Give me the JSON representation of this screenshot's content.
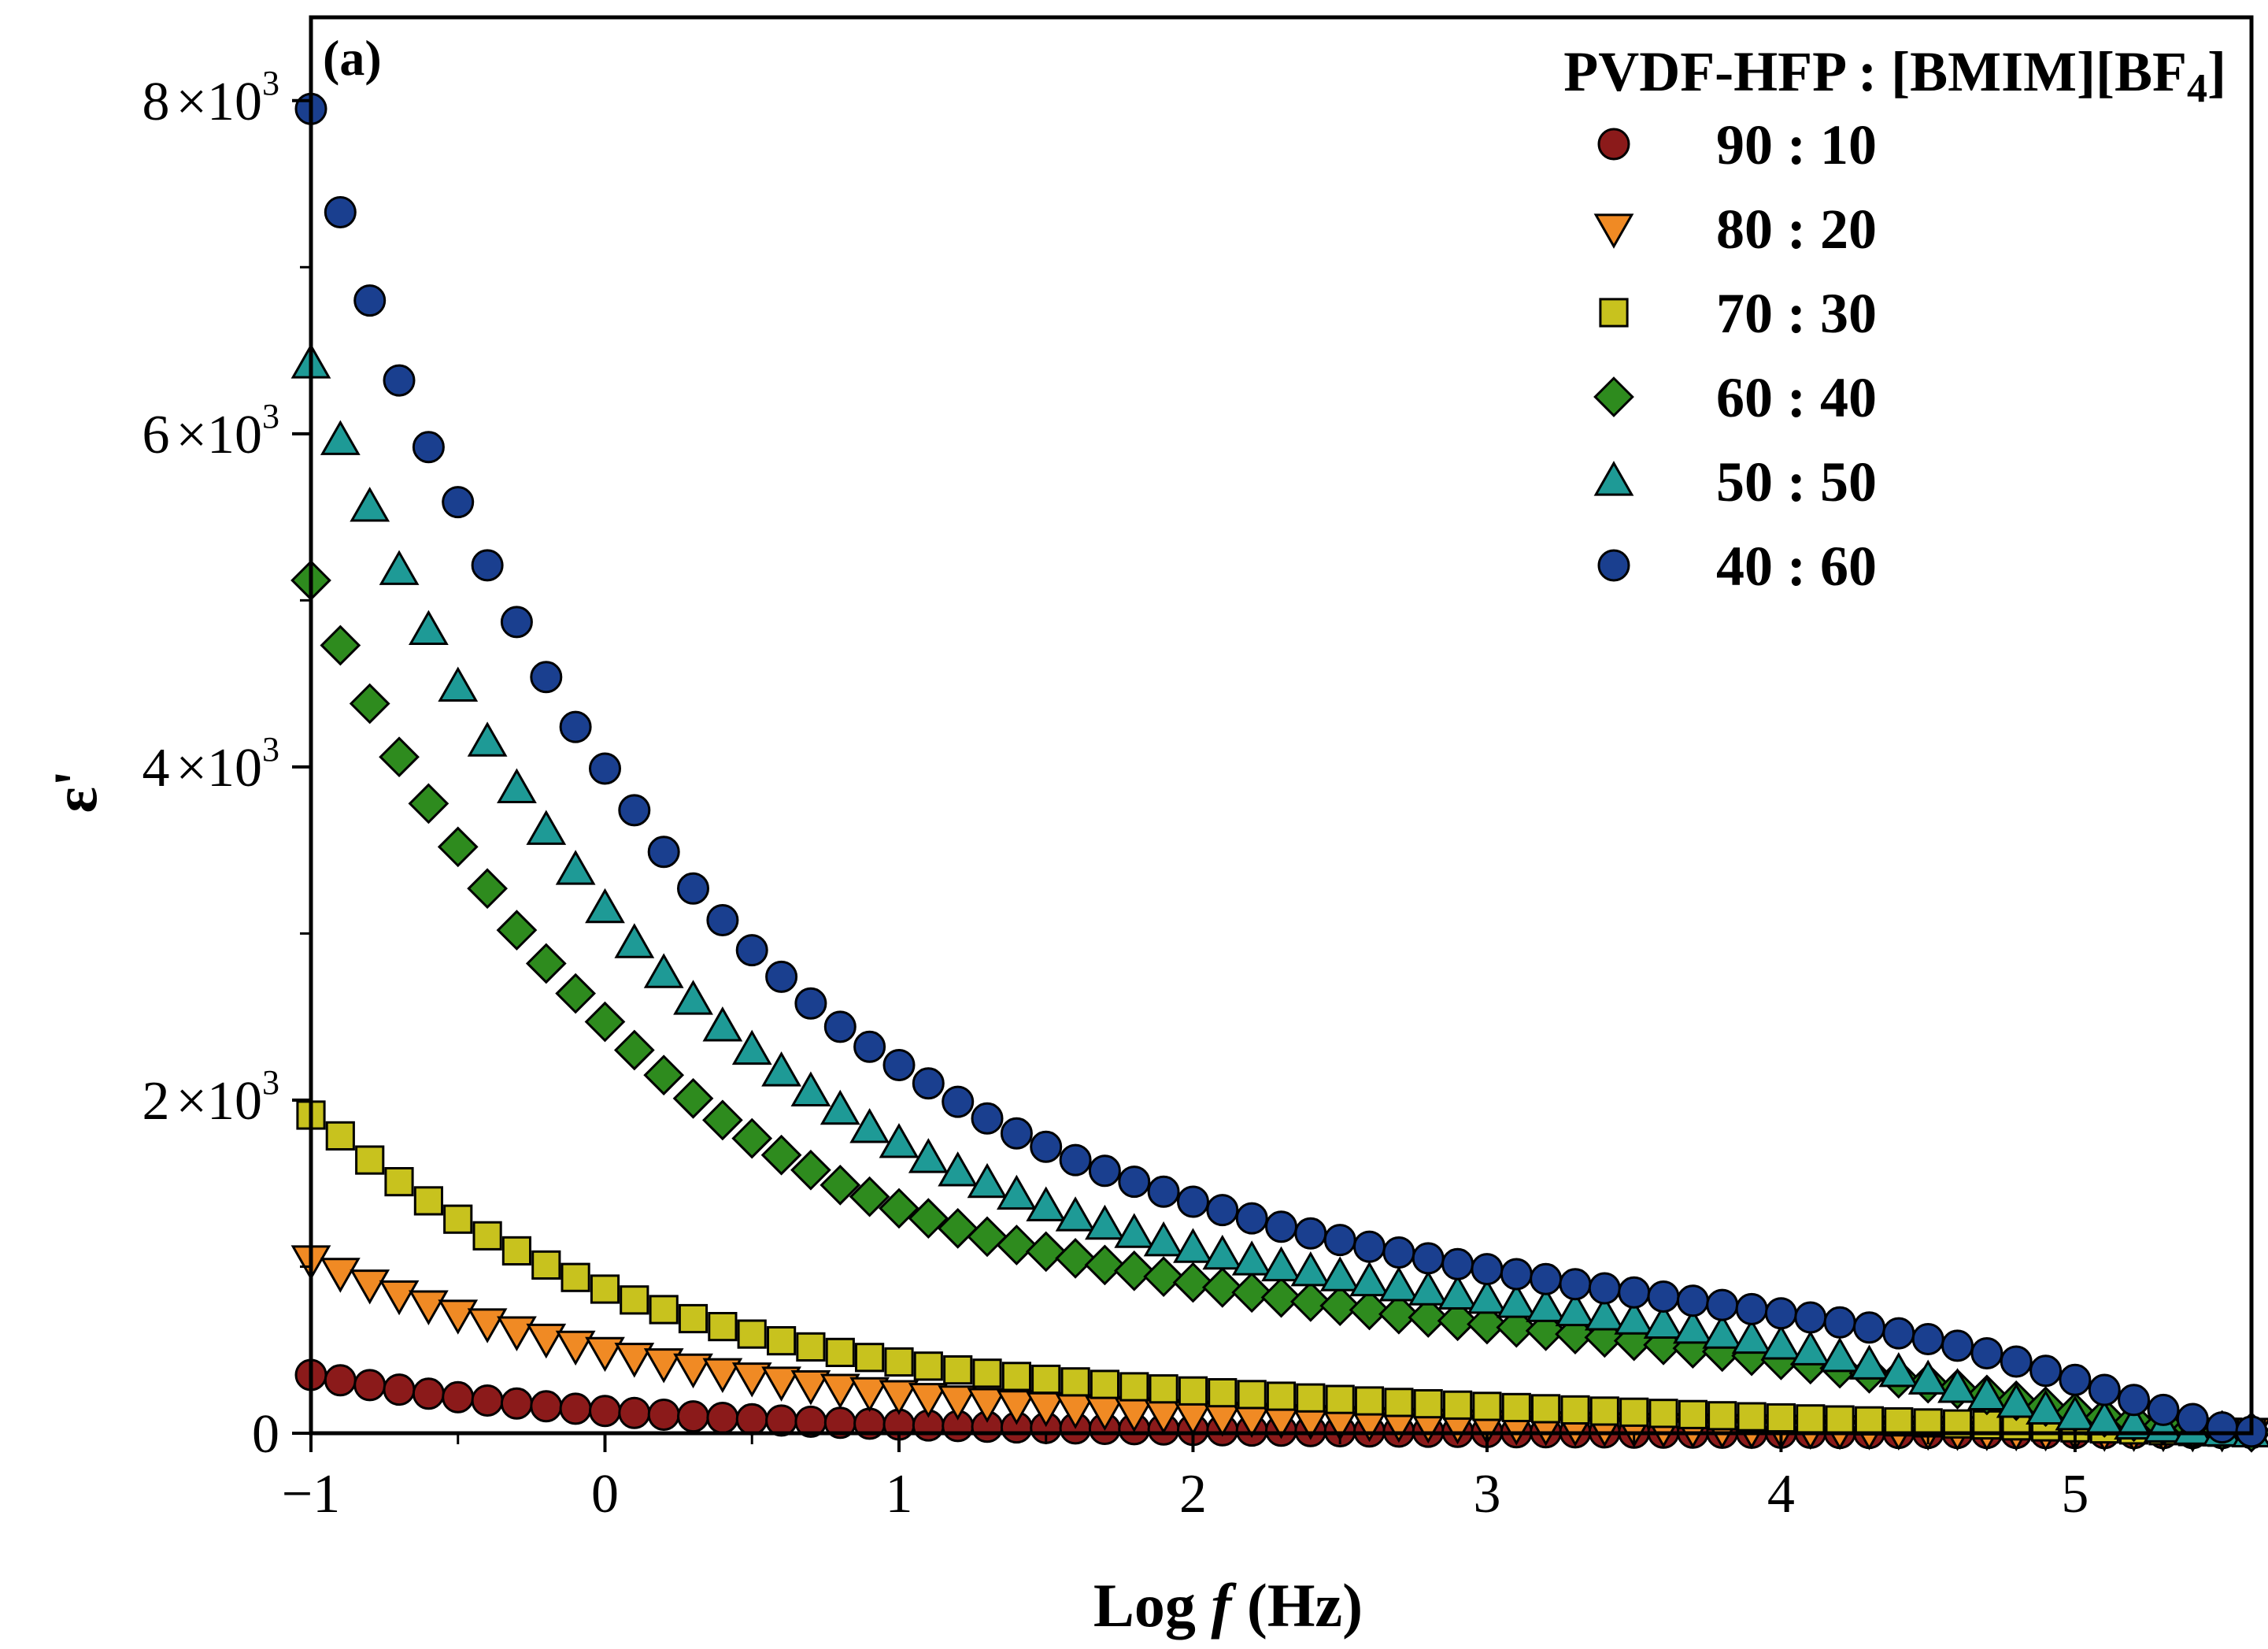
{
  "chart_data": {
    "type": "scatter",
    "panel_label": "(a)",
    "xlabel_prefix": "Log ",
    "xlabel_var": "f",
    "xlabel_suffix": " (Hz)",
    "ylabel": "ε'",
    "xlim": [
      -1,
      5.6
    ],
    "ylim": [
      0,
      8500
    ],
    "x_ticks": [
      {
        "value": -1,
        "label": "−1"
      },
      {
        "value": 0,
        "label": "0"
      },
      {
        "value": 1,
        "label": "1"
      },
      {
        "value": 2,
        "label": "2"
      },
      {
        "value": 3,
        "label": "3"
      },
      {
        "value": 4,
        "label": "4"
      },
      {
        "value": 5,
        "label": "5"
      }
    ],
    "y_ticks": [
      {
        "value": 0,
        "mantissa": "0",
        "exp": ""
      },
      {
        "value": 2000,
        "mantissa": "2",
        "exp": "3"
      },
      {
        "value": 4000,
        "mantissa": "4",
        "exp": "3"
      },
      {
        "value": 6000,
        "mantissa": "6",
        "exp": "3"
      },
      {
        "value": 8000,
        "mantissa": "8",
        "exp": "3"
      }
    ],
    "y_tick_times": "×10",
    "legend_title": "PVDF-HFP : [BMIM][BF",
    "legend_title_sub": "4",
    "legend_title_end": "]",
    "x_start": -1,
    "x_step": 0.1,
    "n_points": 67,
    "series": [
      {
        "name": "90 : 10",
        "marker": "circle",
        "color": "#8b1a1a",
        "values": [
          350,
          318,
          289,
          262,
          238,
          216,
          196,
          178,
          162,
          147,
          134,
          122,
          111,
          101,
          92,
          84,
          76,
          69,
          63,
          57,
          52,
          47,
          43,
          39,
          35,
          32,
          29,
          26,
          24,
          22,
          20,
          18,
          16,
          15,
          13,
          12,
          11,
          10,
          9,
          8,
          7,
          6,
          6,
          5,
          5,
          4,
          4,
          4,
          3,
          3,
          3,
          3,
          2,
          2,
          2,
          2,
          2,
          2,
          2,
          1,
          1,
          1,
          1,
          1,
          1,
          1,
          1
        ]
      },
      {
        "name": "80 : 20",
        "marker": "triangle-down",
        "color": "#f08a24",
        "values": [
          1040,
          965,
          895,
          830,
          770,
          714,
          662,
          614,
          570,
          528,
          490,
          455,
          422,
          391,
          363,
          337,
          312,
          290,
          269,
          249,
          231,
          214,
          199,
          184,
          171,
          159,
          147,
          136,
          127,
          117,
          109,
          101,
          94,
          87,
          81,
          75,
          69,
          64,
          60,
          55,
          51,
          48,
          44,
          41,
          38,
          35,
          33,
          30,
          28,
          26,
          24,
          22,
          21,
          19,
          18,
          17,
          15,
          14,
          13,
          12,
          11,
          10,
          9,
          8,
          7,
          6,
          5
        ]
      },
      {
        "name": "70 : 30",
        "marker": "square",
        "color": "#c8c21e",
        "values": [
          1910,
          1785,
          1640,
          1510,
          1395,
          1285,
          1185,
          1095,
          1010,
          935,
          865,
          800,
          742,
          688,
          640,
          595,
          555,
          518,
          485,
          455,
          428,
          403,
          380,
          360,
          341,
          324,
          308,
          293,
          279,
          266,
          254,
          243,
          232,
          222,
          212,
          203,
          194,
          185,
          177,
          169,
          161,
          154,
          147,
          140,
          133,
          126,
          119,
          112,
          105,
          99,
          92,
          86,
          80,
          74,
          68,
          62,
          56,
          50,
          44,
          38,
          32,
          26,
          20,
          15,
          10,
          6,
          3
        ]
      },
      {
        "name": "60 : 40",
        "marker": "diamond",
        "color": "#2e8b1e",
        "values": [
          5120,
          4730,
          4380,
          4060,
          3780,
          3520,
          3270,
          3020,
          2820,
          2640,
          2470,
          2300,
          2150,
          2010,
          1880,
          1770,
          1670,
          1580,
          1490,
          1420,
          1350,
          1290,
          1230,
          1180,
          1130,
          1090,
          1050,
          1010,
          975,
          940,
          905,
          875,
          845,
          815,
          790,
          765,
          740,
          715,
          695,
          675,
          655,
          635,
          615,
          595,
          575,
          555,
          530,
          510,
          490,
          465,
          440,
          415,
          390,
          360,
          330,
          300,
          265,
          230,
          195,
          160,
          125,
          95,
          70,
          48,
          30,
          16,
          6
        ]
      },
      {
        "name": "50 : 50",
        "marker": "triangle-up",
        "color": "#1e9a96",
        "values": [
          6420,
          5960,
          5560,
          5180,
          4820,
          4480,
          4150,
          3870,
          3620,
          3380,
          3150,
          2940,
          2760,
          2600,
          2440,
          2300,
          2170,
          2050,
          1940,
          1830,
          1740,
          1650,
          1570,
          1500,
          1430,
          1360,
          1300,
          1250,
          1200,
          1150,
          1110,
          1070,
          1035,
          1000,
          970,
          940,
          910,
          880,
          855,
          830,
          805,
          780,
          755,
          730,
          705,
          680,
          655,
          625,
          595,
          565,
          530,
          495,
          455,
          410,
          365,
          320,
          270,
          225,
          180,
          140,
          105,
          75,
          50,
          32,
          18,
          8,
          3
        ]
      },
      {
        "name": "40 : 60",
        "marker": "circle",
        "color": "#1a3f8f",
        "values": [
          7950,
          7330,
          6800,
          6320,
          5920,
          5590,
          5210,
          4870,
          4540,
          4240,
          3990,
          3740,
          3490,
          3270,
          3080,
          2900,
          2740,
          2580,
          2440,
          2320,
          2210,
          2100,
          1990,
          1890,
          1800,
          1720,
          1640,
          1575,
          1510,
          1450,
          1390,
          1340,
          1290,
          1240,
          1200,
          1160,
          1120,
          1085,
          1050,
          1015,
          985,
          955,
          925,
          895,
          870,
          845,
          820,
          795,
          770,
          745,
          720,
          695,
          665,
          635,
          600,
          565,
          525,
          480,
          430,
          375,
          320,
          260,
          200,
          140,
          85,
          35,
          10
        ]
      }
    ]
  }
}
